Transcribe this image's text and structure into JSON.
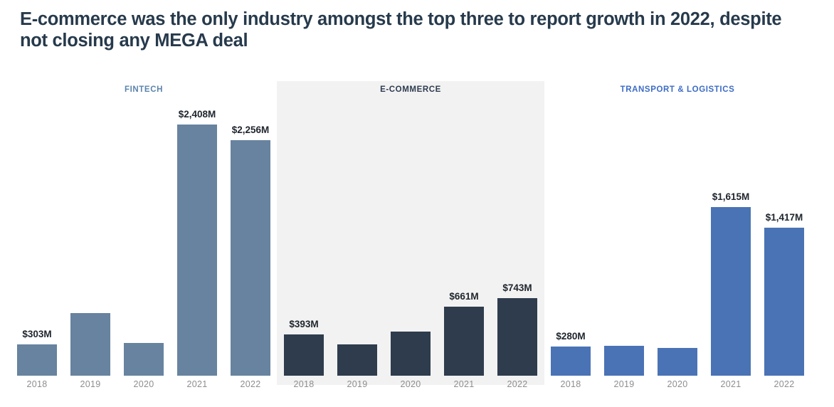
{
  "header": {
    "title_lines": [
      "E-commerce was the only industry amongst the top three to report growth in 2022, despite",
      "not closing any MEGA deal"
    ],
    "title_color": "#273a4c"
  },
  "chart_data": {
    "type": "bar",
    "unit": "USD millions ($M)",
    "categories": [
      "2018",
      "2019",
      "2020",
      "2021",
      "2022"
    ],
    "ylim": [
      0,
      2500
    ],
    "grid": false,
    "legend": "none",
    "highlight_panel_color": "#f2f2f2",
    "year_label_color": "#8e8e8e",
    "value_label_color": "#20262e",
    "groups": [
      {
        "id": "fintech",
        "name": "FINTECH",
        "header_color": "#5c84ac",
        "bar_color": "#67839f",
        "highlighted": false,
        "values": [
          303,
          600,
          315,
          2408,
          2256
        ],
        "labels": [
          "$303M",
          null,
          null,
          "$2,408M",
          "$2,256M"
        ]
      },
      {
        "id": "ecommerce",
        "name": "E-COMMERCE",
        "header_color": "#2e3c50",
        "bar_color": "#2e3c4d",
        "highlighted": true,
        "values": [
          393,
          300,
          425,
          661,
          743
        ],
        "labels": [
          "$393M",
          null,
          null,
          "$661M",
          "$743M"
        ]
      },
      {
        "id": "transport-logistics",
        "name": "TRANSPORT & LOGISTICS",
        "header_color": "#3d6cc5",
        "bar_color": "#4a73b5",
        "highlighted": false,
        "values": [
          280,
          285,
          265,
          1615,
          1417
        ],
        "labels": [
          "$280M",
          null,
          null,
          "$1,615M",
          "$1,417M"
        ]
      }
    ]
  }
}
